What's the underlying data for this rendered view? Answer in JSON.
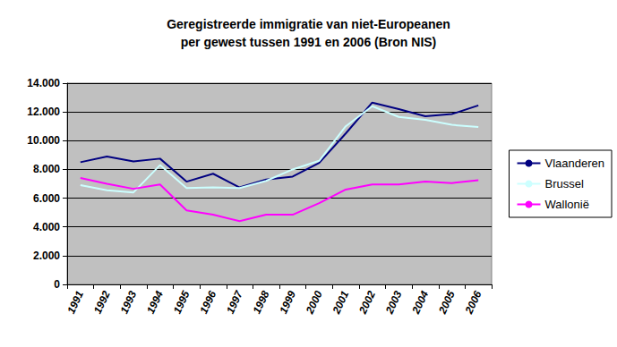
{
  "chart_data": {
    "type": "line",
    "title": "Geregistreerde immigratie van niet-Europeanen\nper gewest tussen 1991 en 2006 (Bron NIS)",
    "categories": [
      "1991",
      "1992",
      "1993",
      "1994",
      "1995",
      "1996",
      "1997",
      "1998",
      "1999",
      "2000",
      "2001",
      "2002",
      "2003",
      "2004",
      "2005",
      "2006"
    ],
    "series": [
      {
        "name": "Vlaanderen",
        "color": "#000080",
        "values": [
          8500,
          8900,
          8550,
          8750,
          7150,
          7700,
          6750,
          7300,
          7500,
          8450,
          10500,
          12650,
          12200,
          11700,
          11850,
          12450
        ]
      },
      {
        "name": "Brussel",
        "color": "#CCFFFF",
        "values": [
          6900,
          6550,
          6400,
          8300,
          6700,
          6750,
          6700,
          7200,
          8000,
          8600,
          11000,
          12400,
          11650,
          11450,
          11100,
          10950
        ]
      },
      {
        "name": "Wallonië",
        "color": "#FF00FF",
        "values": [
          7400,
          7000,
          6650,
          6950,
          5150,
          4850,
          4400,
          4850,
          4850,
          5650,
          6600,
          6950,
          6950,
          7150,
          7050,
          7250
        ]
      }
    ],
    "ylim": [
      0,
      14000
    ],
    "yticks": [
      0,
      {
        "value": 2000,
        "label": "2.000"
      },
      {
        "value": 4000,
        "label": "4.000"
      },
      {
        "value": 6000,
        "label": "6.000"
      },
      {
        "value": 8000,
        "label": "8.000"
      },
      {
        "value": 10000,
        "label": "10.000"
      },
      {
        "value": 12000,
        "label": "12.000"
      },
      {
        "value": 14000,
        "label": "14.000"
      }
    ],
    "grid": true,
    "legend": "right"
  }
}
